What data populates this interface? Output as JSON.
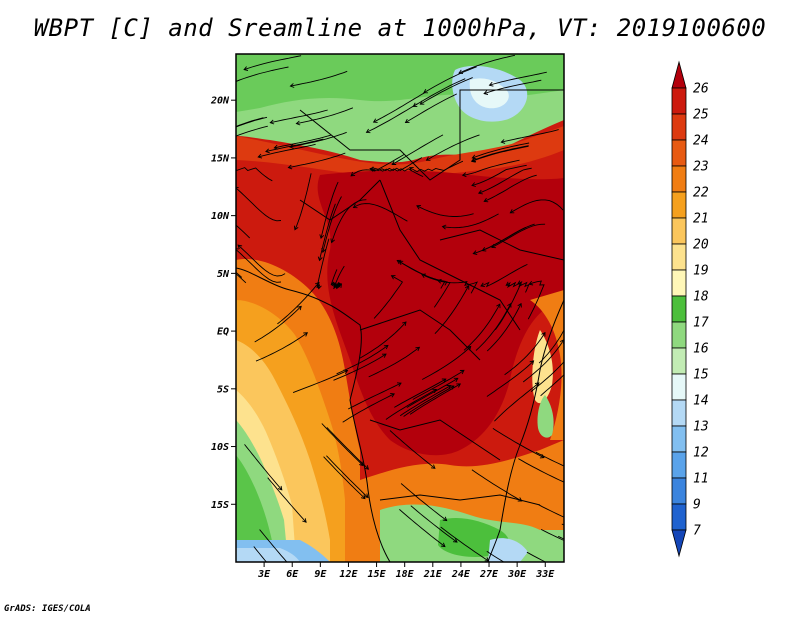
{
  "title": "WBPT [C] and Sreamline at 1000hPa, VT: 2019100600",
  "footer": "GrADS: IGES/COLA",
  "map": {
    "lon_range": [
      0,
      35
    ],
    "lat_range": [
      -20,
      24
    ],
    "lat_ticks": [
      "20N",
      "15N",
      "10N",
      "5N",
      "EQ",
      "5S",
      "10S",
      "15S"
    ],
    "lat_tick_values": [
      20,
      15,
      10,
      5,
      0,
      -5,
      -10,
      -15
    ],
    "lon_ticks": [
      "3E",
      "6E",
      "9E",
      "12E",
      "15E",
      "18E",
      "21E",
      "24E",
      "27E",
      "30E",
      "33E"
    ],
    "lon_tick_values": [
      3,
      6,
      9,
      12,
      15,
      18,
      21,
      24,
      27,
      30,
      33
    ]
  },
  "colorbar": {
    "labels": [
      "26",
      "25",
      "24",
      "23",
      "22",
      "21",
      "20",
      "19",
      "18",
      "17",
      "16",
      "15",
      "14",
      "13",
      "12",
      "11",
      "9",
      "7"
    ],
    "colors": [
      "#b3000c",
      "#cc1a0e",
      "#dd3a10",
      "#e75a12",
      "#f07d13",
      "#f5a01e",
      "#fbc65c",
      "#fde28e",
      "#fff7b8",
      "#4cbf3c",
      "#8fd97f",
      "#c2ecb4",
      "#e6f8f8",
      "#b4d9f5",
      "#82bff0",
      "#5aa3ea",
      "#3b84de",
      "#1f62cf",
      "#1446b8"
    ],
    "unit": "C"
  }
}
